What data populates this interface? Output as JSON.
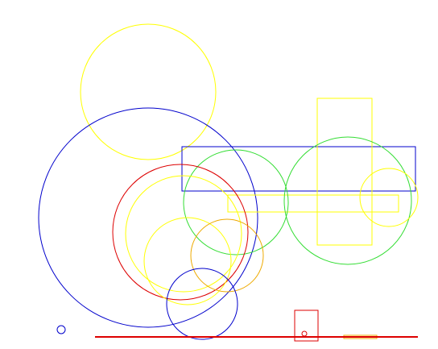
{
  "colors": {
    "background": "#ffffff",
    "yellow": "#ffff00",
    "blue": "#0000cc",
    "red": "#dd0000",
    "green": "#33dd33",
    "orange": "#eeaa00"
  }
}
